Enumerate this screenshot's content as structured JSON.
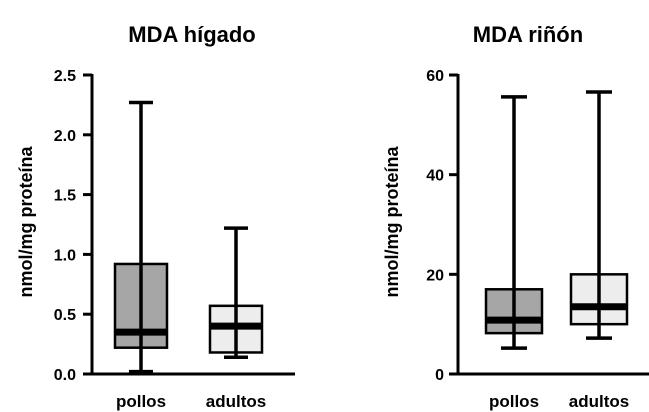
{
  "chart_data": [
    {
      "type": "box",
      "title": "MDA hígado",
      "ylabel": "nmol/mg proteína",
      "ylim": [
        0,
        2.5
      ],
      "yticks": [
        0.0,
        0.5,
        1.0,
        1.5,
        2.0,
        2.5
      ],
      "ytick_labels": [
        "0.0",
        "0.5",
        "1.0",
        "1.5",
        "2.0",
        "2.5"
      ],
      "categories": [
        "pollos",
        "adultos"
      ],
      "boxes": [
        {
          "category": "pollos",
          "min": 0.02,
          "q1": 0.22,
          "median": 0.35,
          "q3": 0.92,
          "max": 2.27,
          "color": "#a6a6a6"
        },
        {
          "category": "adultos",
          "min": 0.14,
          "q1": 0.18,
          "median": 0.4,
          "q3": 0.57,
          "max": 1.22,
          "color": "#ededed"
        }
      ]
    },
    {
      "type": "box",
      "title": "MDA riñón",
      "ylabel": "nmol/mg proteína",
      "ylim": [
        0,
        60
      ],
      "yticks": [
        0,
        20,
        40,
        60
      ],
      "ytick_labels": [
        "0",
        "20",
        "40",
        "60"
      ],
      "categories": [
        "pollos",
        "adultos"
      ],
      "boxes": [
        {
          "category": "pollos",
          "min": 5.2,
          "q1": 8.2,
          "median": 10.8,
          "q3": 17.0,
          "max": 55.6,
          "color": "#a6a6a6"
        },
        {
          "category": "adultos",
          "min": 7.2,
          "q1": 10.0,
          "median": 13.5,
          "q3": 20.0,
          "max": 56.6,
          "color": "#ededed"
        }
      ]
    }
  ]
}
